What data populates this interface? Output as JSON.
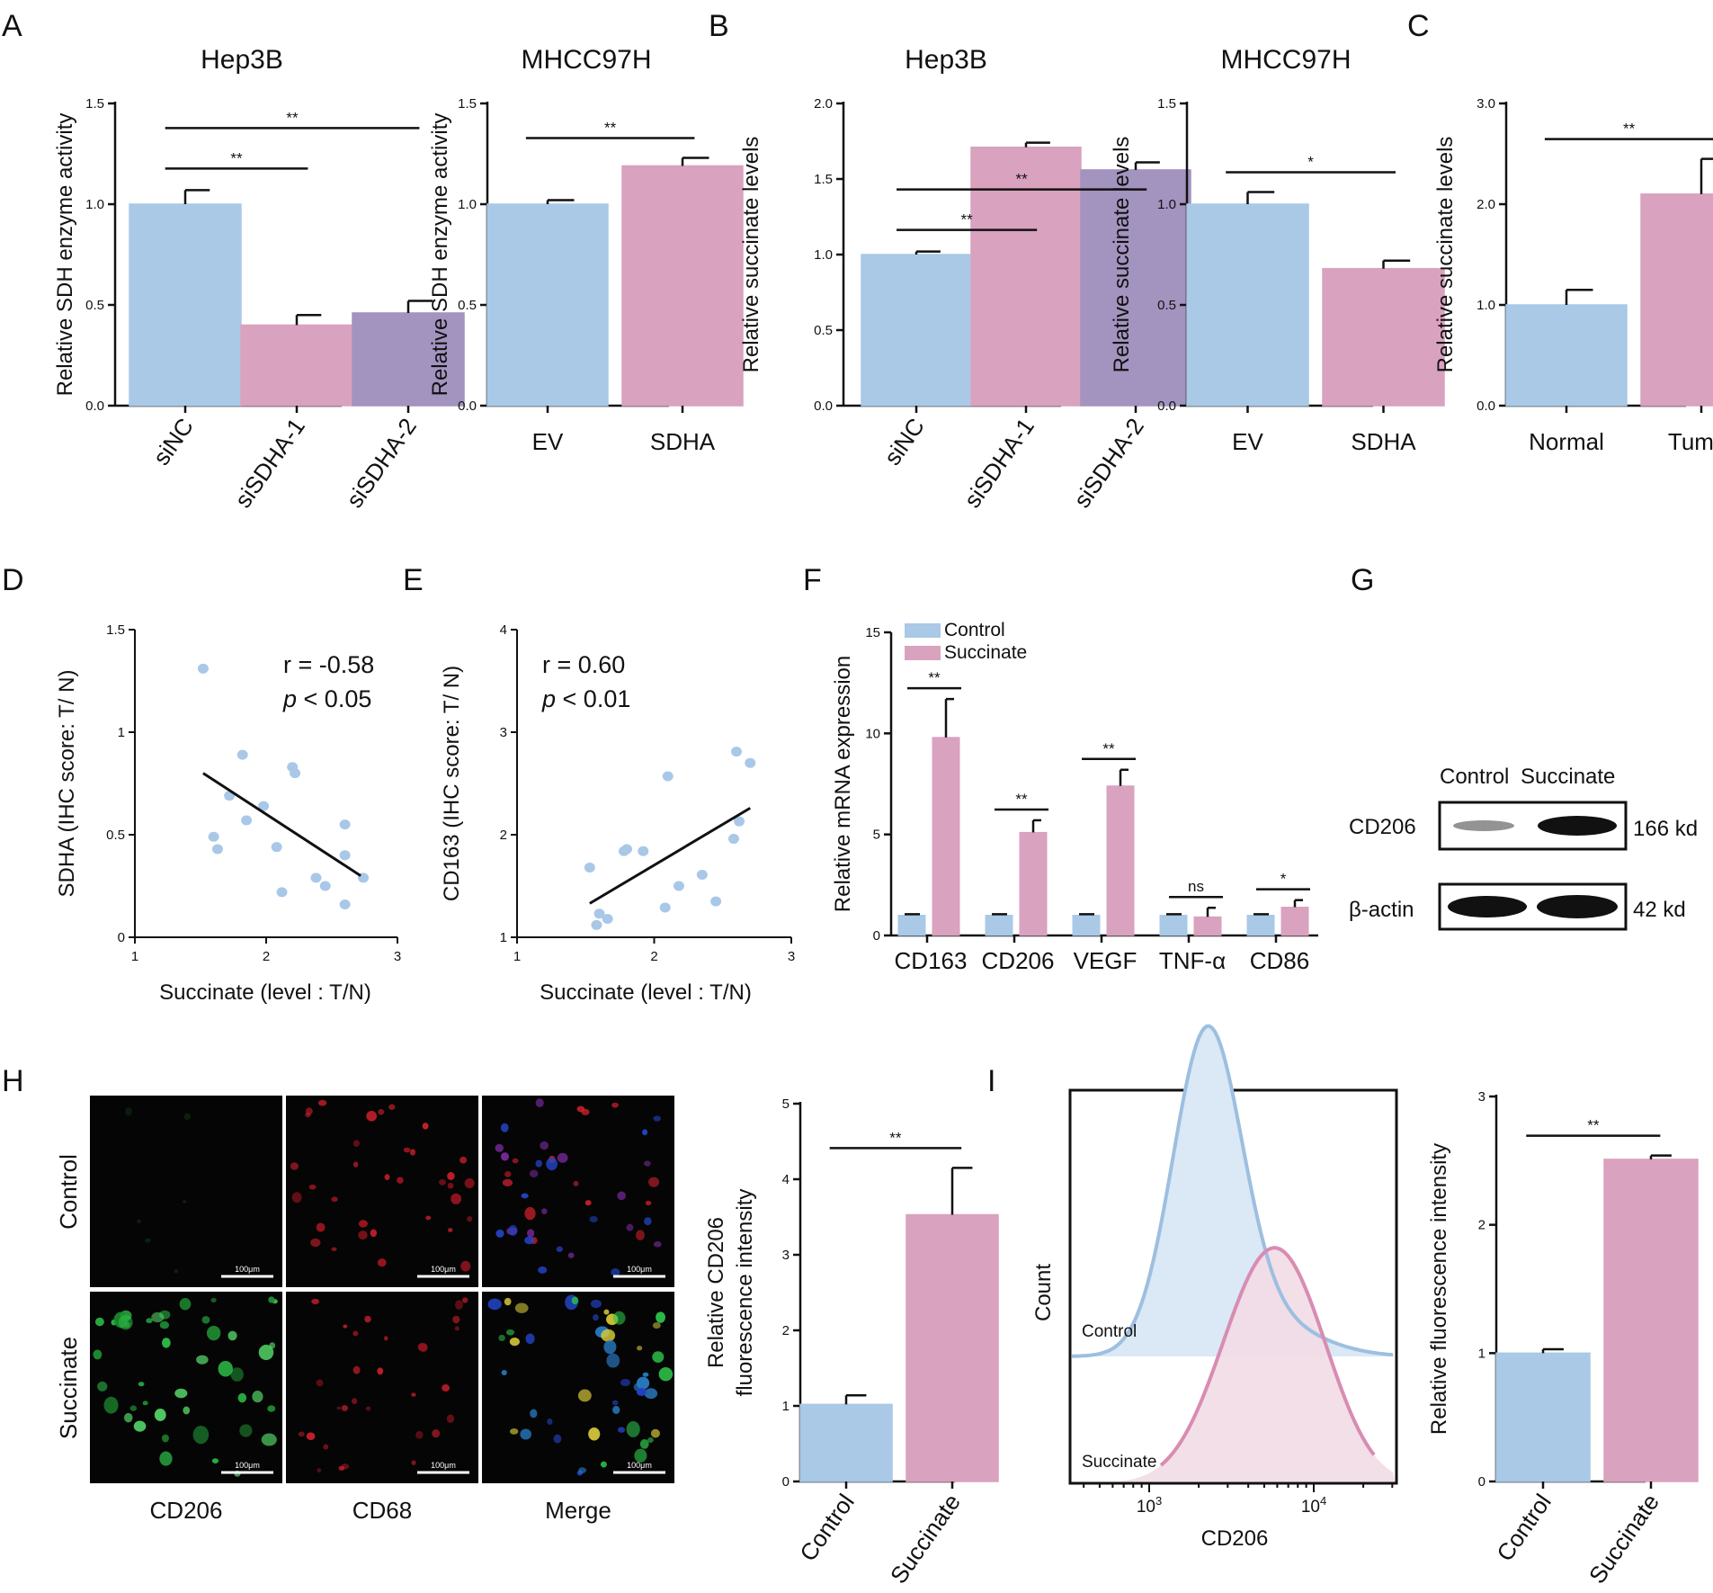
{
  "colors": {
    "blue": "#a9c9e6",
    "pink": "#d9a2be",
    "purple": "#a393bf",
    "dot": "#a9c8e8",
    "bar_stroke": "#7a8fa8",
    "fl_green": "#2ec24b",
    "fl_red": "#d8222e",
    "fl_blue": "#2545c8"
  },
  "panels": {
    "A": {
      "label": "A"
    },
    "B": {
      "label": "B"
    },
    "C": {
      "label": "C"
    },
    "D": {
      "label": "D"
    },
    "E": {
      "label": "E"
    },
    "F": {
      "label": "F"
    },
    "G": {
      "label": "G"
    },
    "H": {
      "label": "H"
    },
    "I": {
      "label": "I"
    }
  },
  "chart_data": [
    {
      "id": "A1",
      "type": "bar",
      "title": "Hep3B",
      "ylabel": "Relative  SDH enzyme activity",
      "categories": [
        "siNC",
        "siSDHA-1",
        "siSDHA-2"
      ],
      "values": [
        1.0,
        0.4,
        0.46
      ],
      "errors": [
        0.07,
        0.05,
        0.06
      ],
      "colors": [
        "blue",
        "pink",
        "purple"
      ],
      "ylim": [
        0,
        1.5
      ],
      "yticks": [
        "0.0",
        "0.5",
        "1.0",
        "1.5"
      ],
      "comparisons": [
        {
          "from": 0,
          "to": 1,
          "label": "**"
        },
        {
          "from": 0,
          "to": 2,
          "label": "**"
        }
      ]
    },
    {
      "id": "A2",
      "type": "bar",
      "title": "MHCC97H",
      "ylabel": "Relative  SDH enzyme activity",
      "categories": [
        "EV",
        "SDHA"
      ],
      "values": [
        1.0,
        1.19
      ],
      "errors": [
        0.02,
        0.04
      ],
      "colors": [
        "blue",
        "pink"
      ],
      "ylim": [
        0,
        1.5
      ],
      "yticks": [
        "0.0",
        "0.5",
        "1.0",
        "1.5"
      ],
      "comparisons": [
        {
          "from": 0,
          "to": 1,
          "label": "**"
        }
      ]
    },
    {
      "id": "B1",
      "type": "bar",
      "title": "Hep3B",
      "ylabel": "Relative  succinate levels",
      "categories": [
        "siNC",
        "siSDHA-1",
        "siSDHA-2"
      ],
      "values": [
        1.0,
        1.71,
        1.56
      ],
      "errors": [
        0.02,
        0.03,
        0.05
      ],
      "colors": [
        "blue",
        "pink",
        "purple"
      ],
      "ylim": [
        0,
        2.0
      ],
      "yticks": [
        "0.0",
        "0.5",
        "1.0",
        "1.5",
        "2.0"
      ],
      "comparisons": [
        {
          "from": 0,
          "to": 1,
          "label": "**"
        },
        {
          "from": 0,
          "to": 2,
          "label": "**"
        }
      ]
    },
    {
      "id": "B2",
      "type": "bar",
      "title": "MHCC97H",
      "ylabel": "Relative  succinate levels",
      "categories": [
        "EV",
        "SDHA"
      ],
      "values": [
        1.0,
        0.68
      ],
      "errors": [
        0.06,
        0.04
      ],
      "colors": [
        "blue",
        "pink"
      ],
      "ylim": [
        0,
        1.5
      ],
      "yticks": [
        "0.0",
        "0.5",
        "1.0",
        "1.5"
      ],
      "comparisons": [
        {
          "from": 0,
          "to": 1,
          "label": "*"
        }
      ]
    },
    {
      "id": "C",
      "type": "bar",
      "title": "",
      "ylabel": "Relative  succinate levels",
      "categories": [
        "Normal",
        "Tumor"
      ],
      "values": [
        1.0,
        2.1
      ],
      "errors": [
        0.15,
        0.35
      ],
      "colors": [
        "blue",
        "pink"
      ],
      "ylim": [
        0,
        3.0
      ],
      "yticks": [
        "0.0",
        "1.0",
        "2.0",
        "3.0"
      ],
      "comparisons": [
        {
          "from": 0,
          "to": 1,
          "label": "**"
        }
      ]
    },
    {
      "id": "D",
      "type": "scatter",
      "xlabel": "Succinate (level  : T/N)",
      "ylabel": "SDHA  (IHC score: T/ N)",
      "xlim": [
        1,
        3
      ],
      "ylim": [
        0,
        1.5
      ],
      "xticks": [
        "1",
        "2",
        "3"
      ],
      "yticks": [
        "0",
        "0.5",
        "1",
        "1.5"
      ],
      "points": [
        [
          1.52,
          1.31
        ],
        [
          1.6,
          0.49
        ],
        [
          1.63,
          0.43
        ],
        [
          1.72,
          0.69
        ],
        [
          1.82,
          0.89
        ],
        [
          1.85,
          0.57
        ],
        [
          1.98,
          0.64
        ],
        [
          2.08,
          0.44
        ],
        [
          2.12,
          0.22
        ],
        [
          2.2,
          0.83
        ],
        [
          2.22,
          0.8
        ],
        [
          2.38,
          0.29
        ],
        [
          2.45,
          0.25
        ],
        [
          2.6,
          0.55
        ],
        [
          2.6,
          0.4
        ],
        [
          2.6,
          0.16
        ],
        [
          2.74,
          0.29
        ]
      ],
      "fit": [
        [
          1.52,
          0.8
        ],
        [
          2.72,
          0.3
        ]
      ],
      "annotation_r": "r = -0.58",
      "annotation_p_italic": "p",
      "annotation_p_rest": " < 0.05"
    },
    {
      "id": "E",
      "type": "scatter",
      "xlabel": "Succinate (level  : T/N)",
      "ylabel": "CD163  (IHC score: T/ N)",
      "xlim": [
        1,
        3
      ],
      "ylim": [
        1,
        4
      ],
      "xticks": [
        "1",
        "2",
        "3"
      ],
      "yticks": [
        "1",
        "2",
        "3",
        "4"
      ],
      "points": [
        [
          1.53,
          1.68
        ],
        [
          1.58,
          1.12
        ],
        [
          1.6,
          1.23
        ],
        [
          1.66,
          1.18
        ],
        [
          1.78,
          1.84
        ],
        [
          1.8,
          1.86
        ],
        [
          1.92,
          1.84
        ],
        [
          2.08,
          1.29
        ],
        [
          2.1,
          2.57
        ],
        [
          2.18,
          1.5
        ],
        [
          2.35,
          1.61
        ],
        [
          2.45,
          1.35
        ],
        [
          2.58,
          1.96
        ],
        [
          2.6,
          2.81
        ],
        [
          2.62,
          2.13
        ],
        [
          2.7,
          2.7
        ]
      ],
      "fit": [
        [
          1.53,
          1.33
        ],
        [
          2.7,
          2.26
        ]
      ],
      "annotation_r": "r = 0.60",
      "annotation_p_italic": "p",
      "annotation_p_rest": " < 0.01"
    },
    {
      "id": "F",
      "type": "bar",
      "ylabel": "Relative  mRNA  expression",
      "categories": [
        "CD163",
        "CD206",
        "VEGF",
        "TNF-α",
        "CD86"
      ],
      "series": [
        {
          "name": "Control",
          "values": [
            1.0,
            1.0,
            1.0,
            1.0,
            1.0
          ],
          "errors": [
            0.05,
            0.05,
            0.05,
            0.05,
            0.05
          ]
        },
        {
          "name": "Succinate",
          "values": [
            9.8,
            5.1,
            7.4,
            0.92,
            1.4
          ],
          "errors": [
            1.9,
            0.6,
            0.8,
            0.45,
            0.35
          ]
        }
      ],
      "ylim": [
        0,
        15
      ],
      "yticks": [
        "0",
        "5",
        "10",
        "15"
      ],
      "significance": [
        "**",
        "**",
        "**",
        "ns",
        "*"
      ]
    },
    {
      "id": "H",
      "type": "bar",
      "ylabel_line1": "Relative  CD206",
      "ylabel_line2": "fluorescence intensity",
      "categories": [
        "Control",
        "Succinate"
      ],
      "values": [
        1.02,
        3.53
      ],
      "errors": [
        0.12,
        0.62
      ],
      "colors": [
        "blue",
        "pink"
      ],
      "ylim": [
        0,
        5
      ],
      "yticks": [
        "0",
        "1",
        "2",
        "3",
        "4",
        "5"
      ],
      "comparisons": [
        {
          "from": 0,
          "to": 1,
          "label": "**"
        }
      ]
    },
    {
      "id": "I",
      "type": "bar",
      "ylabel": "Relative  fluorescence intensity",
      "categories": [
        "Control",
        "Succinate"
      ],
      "values": [
        1.0,
        2.51
      ],
      "errors": [
        0.03,
        0.03
      ],
      "colors": [
        "blue",
        "pink"
      ],
      "ylim": [
        0,
        3
      ],
      "yticks": [
        "0",
        "1",
        "2",
        "3"
      ],
      "comparisons": [
        {
          "from": 0,
          "to": 1,
          "label": "**"
        }
      ]
    }
  ],
  "blot": {
    "lanes": [
      "Control",
      "Succinate"
    ],
    "rows": [
      {
        "label": "CD206",
        "size": "166 kd",
        "intensity": [
          0.35,
          1.0
        ]
      },
      {
        "label": "β-actin",
        "size": "42 kd",
        "intensity": [
          1.0,
          1.0
        ]
      }
    ]
  },
  "microscopy": {
    "rows": [
      "Control",
      "Succinate"
    ],
    "cols": [
      "CD206",
      "CD68",
      "Merge"
    ],
    "scale": "100μm"
  },
  "flow": {
    "ylabel": "Count",
    "xlabel": "CD206",
    "tick_base": "10",
    "tick_exps": [
      "3",
      "4"
    ],
    "control_label": "Control",
    "succinate_label": "Succinate"
  }
}
